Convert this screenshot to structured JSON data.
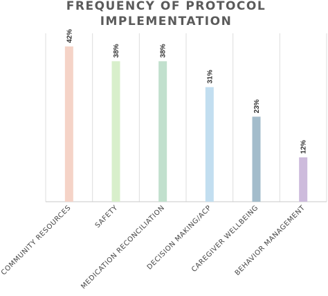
{
  "chart_data": {
    "type": "bar",
    "title_lines": [
      "FREQUENCY OF PROTOCOL",
      "IMPLEMENTATION"
    ],
    "categories": [
      "COMMUNITY RESOURCES",
      "SAFETY",
      "MEDICATION RECONCILIATION",
      "DECISION MAKING/ACP",
      "CAREGIVER WELLBEING",
      "BEHAVIOR MANAGEMENT"
    ],
    "values": [
      42,
      38,
      38,
      31,
      23,
      12
    ],
    "value_labels": [
      "42%",
      "38%",
      "38%",
      "31%",
      "23%",
      "12%"
    ],
    "colors": [
      "#f5d3c7",
      "#d8efcb",
      "#c1e0cd",
      "#c2def0",
      "#a3bccb",
      "#cdbbdc"
    ],
    "ylim": [
      0,
      42
    ],
    "grid": "vertical",
    "legend": "none"
  }
}
